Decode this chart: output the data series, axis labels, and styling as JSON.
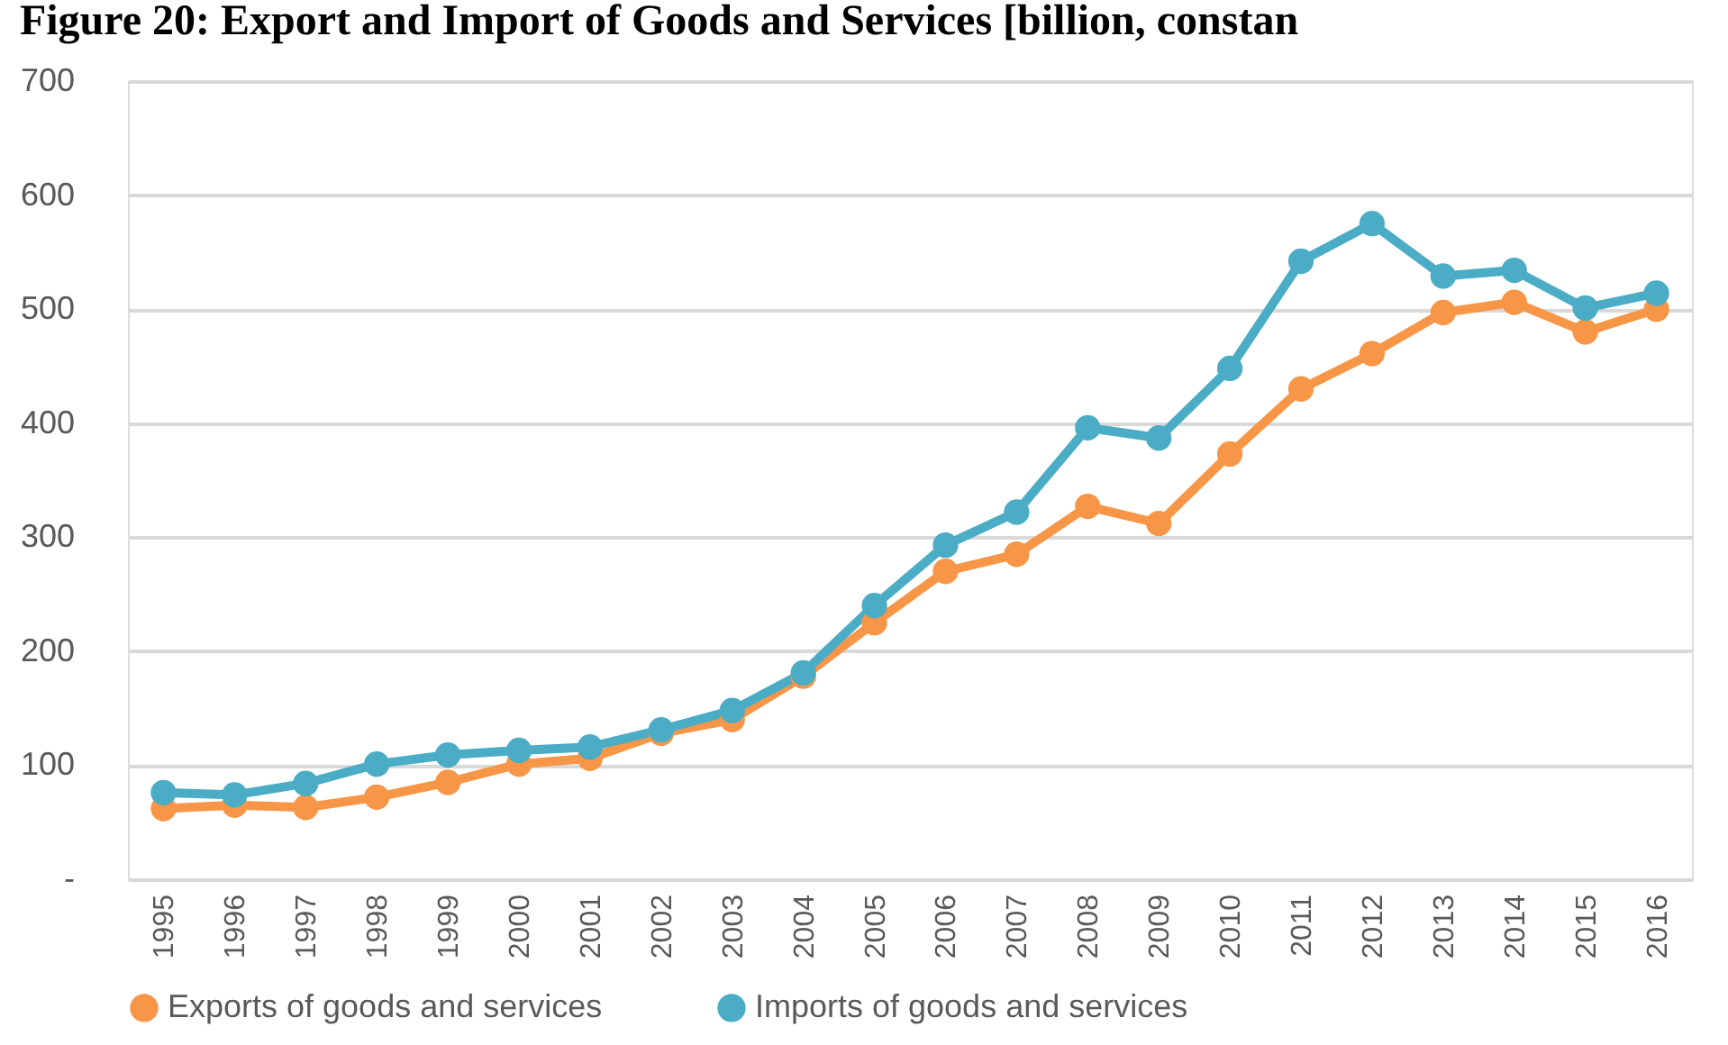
{
  "chart_data": {
    "type": "line",
    "title": "Figure 20: Export and Import of Goods and Services [billion, constan",
    "categories": [
      "1995",
      "1996",
      "1997",
      "1998",
      "1999",
      "2000",
      "2001",
      "2002",
      "2003",
      "2004",
      "2005",
      "2006",
      "2007",
      "2008",
      "2009",
      "2010",
      "2011",
      "2012",
      "2013",
      "2014",
      "2015",
      "2016"
    ],
    "series": [
      {
        "name": "Exports of goods and services",
        "color": "#f79646",
        "values": [
          62,
          65,
          63,
          72,
          85,
          101,
          106,
          128,
          140,
          178,
          225,
          270,
          285,
          327,
          312,
          373,
          430,
          461,
          497,
          506,
          480,
          500
        ]
      },
      {
        "name": "Imports of goods and services",
        "color": "#4bacc6",
        "values": [
          76,
          74,
          84,
          101,
          109,
          113,
          116,
          131,
          148,
          181,
          240,
          293,
          322,
          396,
          387,
          448,
          542,
          575,
          529,
          534,
          501,
          514
        ]
      }
    ],
    "ylim": [
      0,
      700
    ],
    "yticks": [
      {
        "value": 0,
        "label": "-"
      },
      100,
      200,
      300,
      400,
      500,
      600,
      700
    ],
    "grid": "y",
    "legend": "bottom",
    "marker": "circle",
    "line_style": "solid"
  }
}
